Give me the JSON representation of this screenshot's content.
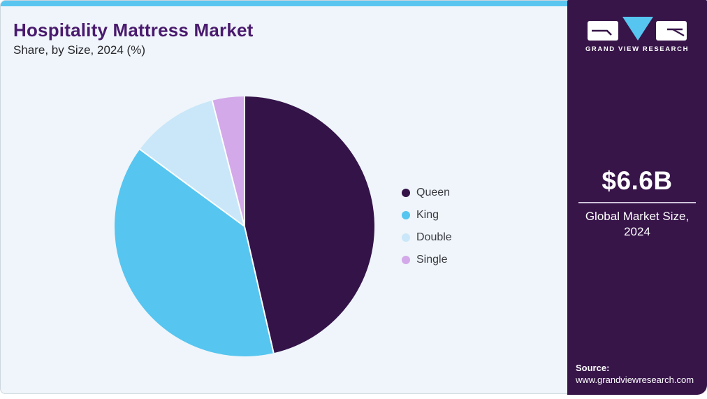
{
  "header": {
    "title": "Hospitality Mattress Market",
    "subtitle": "Share, by Size, 2024 (%)"
  },
  "chart_data": {
    "type": "pie",
    "title": "Hospitality Mattress Market Share, by Size, 2024 (%)",
    "labels": [
      "Queen",
      "King",
      "Double",
      "Single"
    ],
    "values": [
      46.4,
      38.7,
      10.9,
      4.0
    ],
    "unit": "%",
    "colors": [
      "#341349",
      "#56c5f0",
      "#c9e7f9",
      "#d3a9e9"
    ],
    "start_angle_deg": 0,
    "direction": "clockwise",
    "legend_position": "right",
    "data_labels_shown": false,
    "separator_color": "#ffffff"
  },
  "panel": {
    "brand_name": "GRAND VIEW RESEARCH",
    "market_size_value": "$6.6B",
    "market_size_label": "Global Market Size, 2024",
    "source_label": "Source:",
    "source_url": "www.grandviewresearch.com",
    "background_color": "#371549",
    "accent_color": "#56c5f0"
  },
  "theme": {
    "card_background": "#eff5fa",
    "card_border": "#ccd6de",
    "top_strip_color": "#5ac6f0",
    "title_color": "#4a1a6e",
    "body_text_color": "#26262c"
  }
}
